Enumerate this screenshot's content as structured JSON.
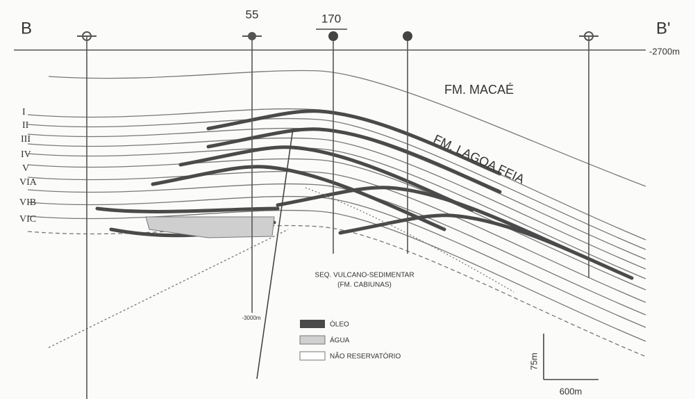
{
  "header": {
    "section_start": "B",
    "section_end": "B'",
    "datum": "-2700m"
  },
  "wells": [
    {
      "label": "55"
    },
    {
      "label": "170"
    }
  ],
  "formations": [
    "FM. MACAÉ",
    "FM. LAGOA FEIA"
  ],
  "zones": [
    "I",
    "II",
    "III",
    "IV",
    "V",
    "VIA",
    "VIB",
    "VIC"
  ],
  "basement": {
    "line1": "SEQ. VULCANO-SEDIMENTAR",
    "line2": "(FM. CABIUNAS)"
  },
  "depth_label": "-3000m",
  "legend": [
    "ÓLEO",
    "ÁGUA",
    "NÃO RESERVATÓRIO"
  ],
  "scale": {
    "vertical": "75m",
    "horizontal": "600m"
  }
}
